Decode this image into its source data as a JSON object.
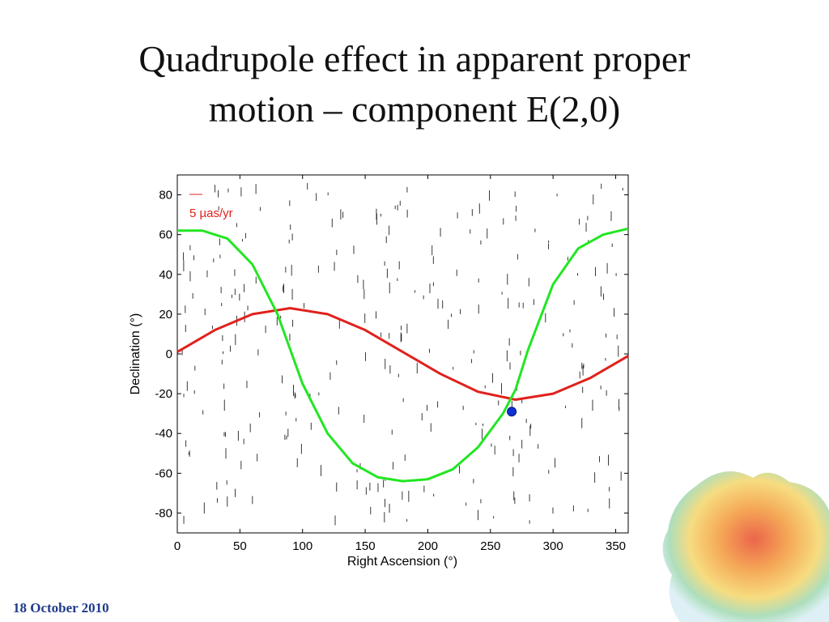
{
  "slide": {
    "title_line1": "Quadrupole effect in apparent proper",
    "title_line2": "motion – component E(2,0)",
    "footer_date": "18 October 2010"
  },
  "chart_data": {
    "type": "line",
    "xlabel": "Right Ascension (°)",
    "ylabel": "Declination (°)",
    "xlim": [
      0,
      360
    ],
    "ylim": [
      -90,
      90
    ],
    "xticks": [
      0,
      50,
      100,
      150,
      200,
      250,
      300,
      350
    ],
    "yticks": [
      80,
      60,
      40,
      20,
      0,
      -20,
      -40,
      -60,
      -80
    ],
    "grid": false,
    "scale_annotation": "5 µas/yr",
    "colors": {
      "red_curve": "#e0211c",
      "green_curve": "#22e622",
      "marker": "#1030d8",
      "arrows": "#222222"
    },
    "series": [
      {
        "color": "red",
        "x": [
          0,
          30,
          60,
          90,
          120,
          150,
          180,
          210,
          240,
          270,
          300,
          330,
          360
        ],
        "y": [
          1,
          12,
          20,
          23,
          20,
          12,
          1,
          -10,
          -19,
          -23,
          -20,
          -12,
          -1
        ]
      },
      {
        "color": "green",
        "x": [
          0,
          20,
          40,
          60,
          80,
          100,
          120,
          140,
          160,
          180,
          200,
          220,
          240,
          260,
          270,
          280,
          300,
          320,
          340,
          360
        ],
        "y": [
          62,
          62,
          58,
          45,
          20,
          -15,
          -40,
          -55,
          -62,
          -64,
          -63,
          -58,
          -47,
          -30,
          -18,
          2,
          35,
          53,
          60,
          63
        ]
      }
    ],
    "marker": {
      "x": 267,
      "y": -29
    }
  }
}
